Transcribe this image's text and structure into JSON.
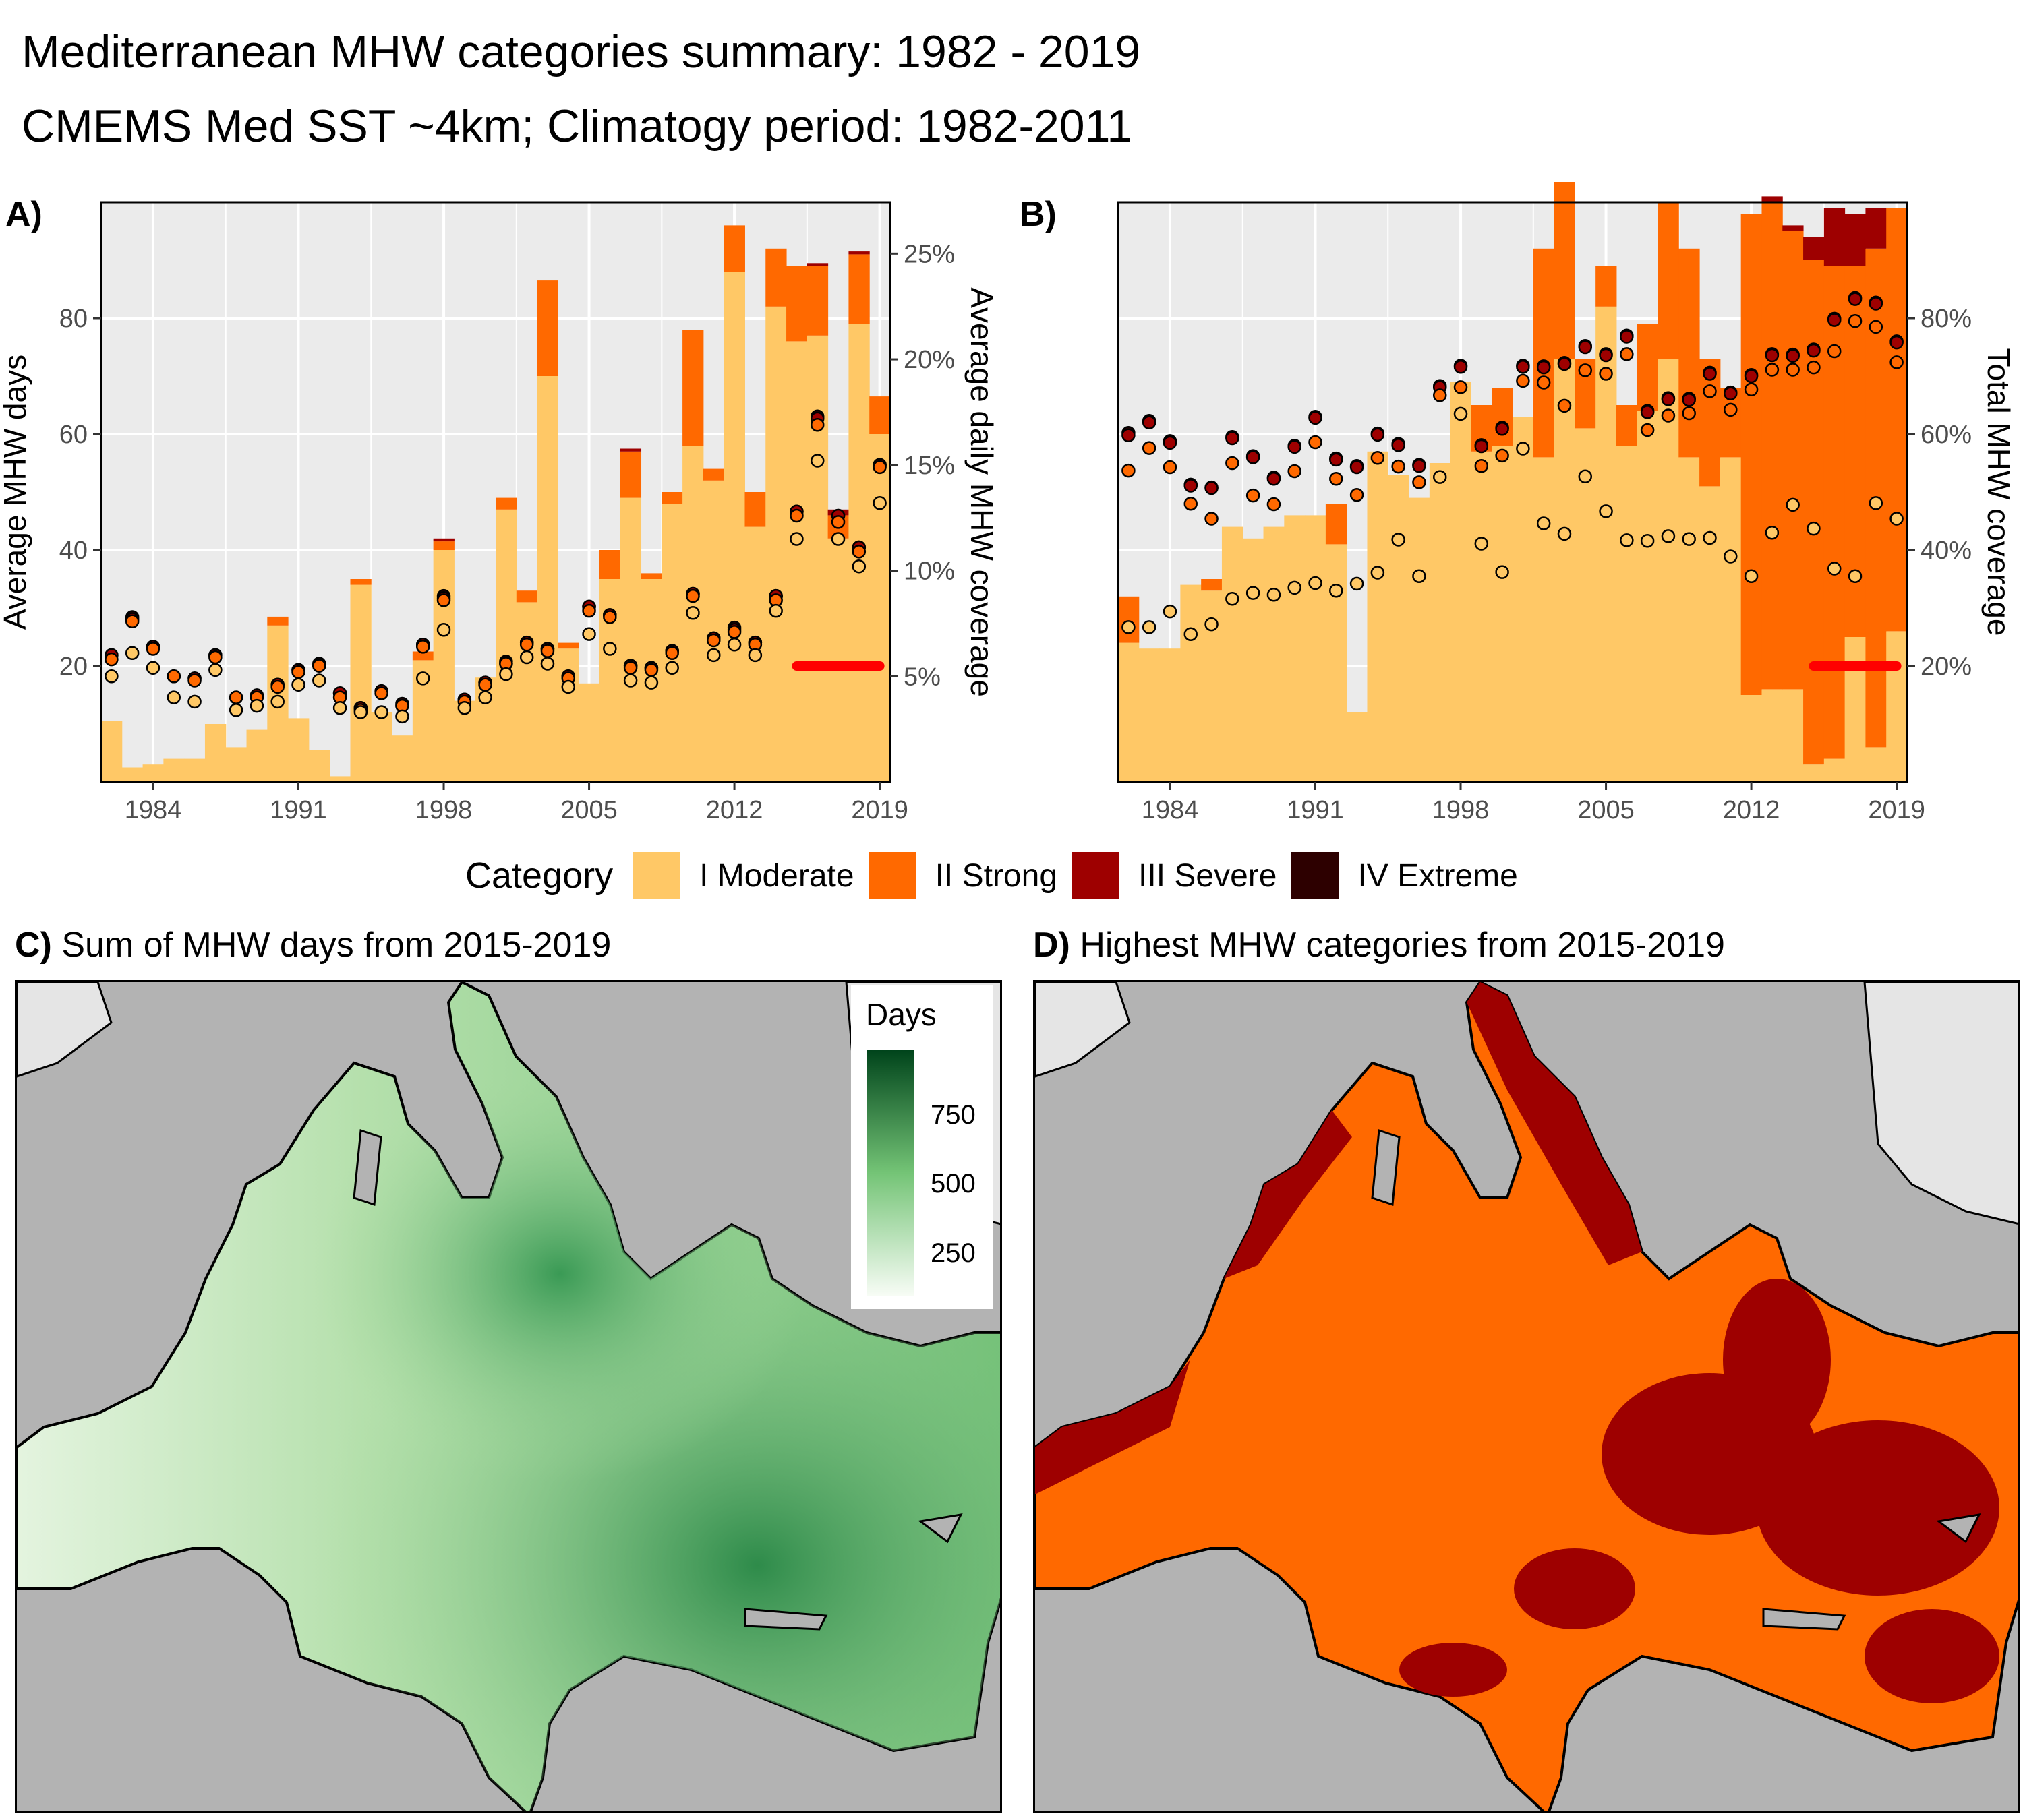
{
  "title_line1": "Mediterranean MHW categories summary: 1982 - 2019",
  "title_line2": "CMEMS Med SST ~4km; Climatogy period: 1982-2011",
  "colors": {
    "I Moderate": "#ffc866",
    "II Strong": "#ff6900",
    "III Severe": "#9e0000",
    "IV Extreme": "#2d0000",
    "panel_bg": "#ebebeb",
    "trend": "#ff0000"
  },
  "legend": {
    "title": "Category",
    "items": [
      "I Moderate",
      "II Strong",
      "III Severe",
      "IV Extreme"
    ]
  },
  "chart_data": [
    {
      "panel": "A)",
      "type": "bar",
      "stacked": true,
      "xlabel": "",
      "ylabel": "Average MHW days",
      "y2label": "Average daily MHW coverage",
      "x_ticks": [
        "1984",
        "1991",
        "1998",
        "2005",
        "2012",
        "2019"
      ],
      "y_ticks": [
        "20",
        "40",
        "60",
        "80"
      ],
      "y2_ticks": [
        "5%",
        "10%",
        "15%",
        "20%",
        "25%"
      ],
      "ylim": [
        0,
        100
      ],
      "grid": true,
      "categories": [
        1982,
        1983,
        1984,
        1985,
        1986,
        1987,
        1988,
        1989,
        1990,
        1991,
        1992,
        1993,
        1994,
        1995,
        1996,
        1997,
        1998,
        1999,
        2000,
        2001,
        2002,
        2003,
        2004,
        2005,
        2006,
        2007,
        2008,
        2009,
        2010,
        2011,
        2012,
        2013,
        2014,
        2015,
        2016,
        2017,
        2018,
        2019
      ],
      "series": [
        {
          "name": "I Moderate",
          "values": [
            10.5,
            2.5,
            3,
            4,
            4,
            10,
            6,
            9,
            27,
            11,
            5.5,
            1,
            34,
            12,
            8,
            21,
            40,
            14,
            18,
            47,
            31,
            70,
            23,
            17,
            35,
            49,
            35,
            48,
            58,
            52,
            88,
            44,
            82,
            76,
            77,
            42,
            79,
            60
          ]
        },
        {
          "name": "II Strong",
          "values": [
            0,
            0,
            0,
            0,
            0,
            0,
            0,
            0,
            1.5,
            0,
            0,
            0,
            1,
            0,
            0,
            1.5,
            1.5,
            0,
            0,
            2,
            2,
            16.5,
            1,
            0,
            5,
            8,
            1,
            2,
            20,
            2,
            8,
            6,
            10,
            13,
            12,
            4,
            12,
            6.5
          ]
        },
        {
          "name": "III Severe",
          "values": [
            0,
            0,
            0,
            0,
            0,
            0,
            0,
            0,
            0,
            0,
            0,
            0,
            0,
            0,
            0,
            0,
            0.5,
            0,
            0,
            0,
            0,
            0,
            0,
            0,
            0,
            0.5,
            0,
            0,
            0,
            0,
            0,
            0,
            0,
            0,
            0.5,
            1,
            0.5,
            0
          ]
        },
        {
          "name": "IV Extreme",
          "values": [
            0,
            0,
            0,
            0,
            0,
            0,
            0,
            0,
            0,
            0,
            0,
            0,
            0,
            0,
            0,
            0,
            0,
            0,
            0,
            0,
            0,
            0,
            0,
            0,
            0,
            0,
            0,
            0,
            0,
            0,
            0,
            0,
            0,
            0,
            0,
            0,
            0,
            0
          ]
        }
      ],
      "coverage_points": [
        {
          "name": "I Moderate",
          "values": [
            5,
            6.1,
            5.4,
            4,
            3.8,
            5.3,
            3.4,
            3.6,
            3.8,
            4.6,
            4.8,
            3.5,
            3.3,
            3.3,
            3.1,
            4.9,
            7.2,
            3.5,
            4,
            5.1,
            5.9,
            5.6,
            4.5,
            7,
            6.3,
            4.8,
            4.7,
            5.4,
            8,
            6,
            6.5,
            6,
            8.1,
            11.5,
            15.2,
            11.5,
            10.2,
            13.2
          ]
        },
        {
          "name": "II Strong",
          "values": [
            5.8,
            7.6,
            6.3,
            5,
            4.8,
            5.9,
            4,
            4,
            4.5,
            5.2,
            5.5,
            4,
            3.4,
            4.2,
            3.6,
            6.4,
            8.6,
            3.8,
            4.6,
            5.6,
            6.5,
            6.2,
            4.9,
            8.1,
            7.8,
            5.4,
            5.3,
            6.1,
            8.8,
            6.7,
            7.1,
            6.5,
            8.6,
            12.6,
            16.9,
            12.3,
            10.9,
            14.9
          ]
        },
        {
          "name": "III Severe",
          "values": [
            6,
            7.7,
            6.4,
            5,
            4.9,
            6,
            4,
            4.1,
            4.6,
            5.3,
            5.5,
            4.2,
            3.5,
            4.3,
            3.6,
            6.5,
            8.7,
            3.9,
            4.7,
            5.6,
            6.6,
            6.3,
            5,
            8.3,
            7.9,
            5.5,
            5.4,
            6.2,
            8.9,
            6.8,
            7.2,
            6.6,
            8.8,
            12.8,
            17.2,
            12.6,
            11.1,
            15
          ]
        },
        {
          "name": "IV Extreme",
          "values": [
            6,
            7.8,
            6.4,
            5,
            4.9,
            6,
            4,
            4.1,
            4.6,
            5.3,
            5.6,
            4.2,
            3.5,
            4.3,
            3.7,
            6.5,
            8.8,
            3.9,
            4.7,
            5.7,
            6.6,
            6.3,
            5,
            8.3,
            7.9,
            5.5,
            5.4,
            6.2,
            8.9,
            6.8,
            7.3,
            6.6,
            8.8,
            12.8,
            17.3,
            12.6,
            11.1,
            15
          ]
        }
      ],
      "trend_segment": {
        "x": [
          2015,
          2019
        ],
        "y": 20
      }
    },
    {
      "panel": "B)",
      "type": "bar",
      "stacked": true,
      "xlabel": "",
      "ylabel": "",
      "y2label": "Total MHW coverage",
      "x_ticks": [
        "1984",
        "1991",
        "1998",
        "2005",
        "2012",
        "2019"
      ],
      "y2_ticks": [
        "20%",
        "40%",
        "60%",
        "80%"
      ],
      "ylim": [
        0,
        100
      ],
      "grid": true,
      "categories": [
        1982,
        1983,
        1984,
        1985,
        1986,
        1987,
        1988,
        1989,
        1990,
        1991,
        1992,
        1993,
        1994,
        1995,
        1996,
        1997,
        1998,
        1999,
        2000,
        2001,
        2002,
        2003,
        2004,
        2005,
        2006,
        2007,
        2008,
        2009,
        2010,
        2011,
        2012,
        2013,
        2014,
        2015,
        2016,
        2017,
        2018,
        2019
      ],
      "series": [
        {
          "name": "I Moderate",
          "values": [
            24,
            23,
            23,
            34,
            33,
            44,
            42,
            44,
            46,
            46,
            41,
            12,
            57,
            53,
            49,
            55,
            69,
            57,
            58,
            63,
            56,
            73,
            61,
            82,
            58,
            64,
            73,
            56,
            51,
            56,
            15,
            16,
            16,
            3,
            4,
            25,
            6,
            26
          ]
        },
        {
          "name": "II Strong",
          "values": [
            8,
            0,
            0,
            0,
            2,
            0,
            0,
            0,
            0,
            0,
            7,
            0,
            0,
            0,
            0,
            0,
            0,
            8,
            10,
            0,
            36,
            36,
            12,
            7,
            7,
            15,
            27,
            36,
            22,
            12,
            83,
            84,
            79,
            87,
            85,
            64,
            86,
            73
          ]
        },
        {
          "name": "III Severe",
          "values": [
            0,
            0,
            0,
            0,
            0,
            0,
            0,
            0,
            0,
            0,
            0,
            0,
            0,
            0,
            0,
            0,
            0,
            0,
            0,
            0,
            0,
            0,
            0,
            0,
            0,
            0,
            0,
            0,
            0,
            0,
            0,
            1,
            1,
            4,
            10,
            9,
            7,
            0
          ]
        },
        {
          "name": "IV Extreme",
          "values": [
            0,
            0,
            0,
            0,
            0,
            0,
            0,
            0,
            0,
            0,
            0,
            0,
            0,
            0,
            0,
            0,
            0,
            0,
            0,
            0,
            0,
            0,
            0,
            0,
            0,
            0,
            0,
            0,
            0,
            0,
            0,
            0,
            0,
            0,
            0,
            0,
            0,
            0
          ]
        }
      ],
      "coverage_points": [
        {
          "name": "I Moderate",
          "values": [
            26.7,
            26.7,
            29.4,
            25.5,
            27.2,
            31.6,
            32.6,
            32.3,
            33.5,
            34.3,
            33,
            34.2,
            36.1,
            41.8,
            35.5,
            52.6,
            63.5,
            41.1,
            36.2,
            57.5,
            44.6,
            42.8,
            52.7,
            46.7,
            41.7,
            41.6,
            42.4,
            41.9,
            42.1,
            38.9,
            35.5,
            43,
            47.8,
            43.7,
            36.8,
            35.5,
            48.1,
            45.4
          ]
        },
        {
          "name": "II Strong",
          "values": [
            53.7,
            57.6,
            54.3,
            48,
            45.4,
            55,
            49.4,
            47.9,
            53.6,
            58.6,
            52.3,
            49.5,
            55.9,
            54.4,
            51.7,
            66.7,
            68.1,
            54.5,
            56.3,
            69.2,
            68.9,
            64.9,
            71,
            70.4,
            73.8,
            60.7,
            63.2,
            63.6,
            67.4,
            64.2,
            67.7,
            71.1,
            71.1,
            71.5,
            74.3,
            79.5,
            78.5,
            72.4
          ]
        },
        {
          "name": "III Severe",
          "values": [
            59.8,
            62,
            58.5,
            51.1,
            50.7,
            59.3,
            56,
            52.3,
            57.8,
            62.8,
            55.6,
            54.3,
            59.9,
            58.1,
            54.5,
            68.1,
            71.6,
            57.9,
            60.9,
            71.6,
            71.5,
            72.1,
            75,
            73.6,
            76.8,
            63.8,
            66,
            65.9,
            70.4,
            67,
            70,
            73.6,
            73.5,
            74.4,
            79.7,
            83.3,
            82.5,
            75.8
          ]
        },
        {
          "name": "IV Extreme",
          "values": [
            60.2,
            62.3,
            58.8,
            51.3,
            50.8,
            59.5,
            56.2,
            52.5,
            58,
            63,
            55.8,
            54.5,
            60.1,
            58.3,
            54.7,
            68.3,
            71.8,
            58.1,
            61.1,
            71.8,
            71.7,
            72.3,
            75.2,
            73.8,
            77,
            64,
            66.2,
            66.1,
            70.6,
            67.2,
            70.2,
            73.8,
            73.7,
            74.6,
            79.9,
            83.5,
            82.7,
            76
          ]
        }
      ],
      "trend_segment": {
        "x": [
          2015,
          2019
        ],
        "y": 20
      }
    },
    {
      "panel": "C)",
      "type": "heatmap",
      "title": "Sum of MHW days from 2015-2019",
      "colorbar_title": "Days",
      "colorbar_ticks": [
        "750",
        "500",
        "250"
      ],
      "colorbar_range": [
        120,
        980
      ],
      "colormap": [
        "#f7fcf5",
        "#00441b"
      ]
    },
    {
      "panel": "D)",
      "type": "heatmap",
      "title": "Highest MHW categories from 2015-2019",
      "categories_shown": [
        "II Strong",
        "III Severe"
      ]
    }
  ],
  "panel_c_tag": "C)",
  "panel_c_title": "Sum of MHW days from 2015-2019",
  "panel_d_tag": "D)",
  "panel_d_title": "Highest MHW categories from 2015-2019",
  "colorbar_title": "Days",
  "colorbar_ticks": [
    "750",
    "500",
    "250"
  ]
}
